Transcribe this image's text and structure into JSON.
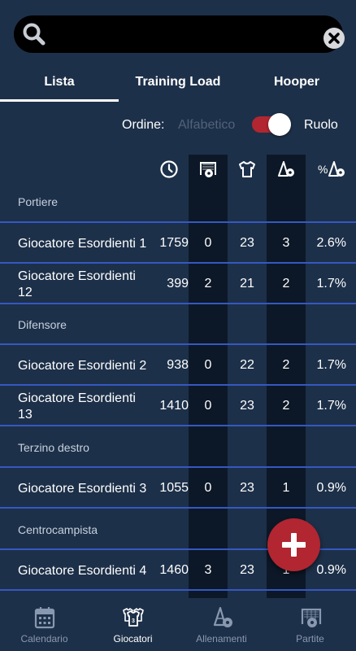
{
  "search": {
    "value": "",
    "placeholder": ""
  },
  "tabs": [
    {
      "label": "Lista",
      "active": true
    },
    {
      "label": "Training Load",
      "active": false
    },
    {
      "label": "Hooper",
      "active": false
    }
  ],
  "order": {
    "label": "Ordine:",
    "option_off": "Alfabetico",
    "option_on": "Ruolo",
    "toggle_on": true
  },
  "columns": {
    "icons": [
      "clock-icon",
      "goal-ball-icon",
      "shirt-icon",
      "cones-ball-icon",
      "percent-cones-ball-icon"
    ],
    "percent_symbol": "%"
  },
  "groups": [
    {
      "title": "Portiere",
      "players": [
        {
          "name": "Giocatore Esordienti 1",
          "time": "1759",
          "a": "0",
          "b": "23",
          "c": "3",
          "d": "2.6%"
        },
        {
          "name": "Giocatore Esordienti 12",
          "time": "399",
          "a": "2",
          "b": "21",
          "c": "2",
          "d": "1.7%"
        }
      ]
    },
    {
      "title": "Difensore",
      "players": [
        {
          "name": "Giocatore Esordienti 2",
          "time": "938",
          "a": "0",
          "b": "22",
          "c": "2",
          "d": "1.7%"
        },
        {
          "name": "Giocatore Esordienti 13",
          "time": "1410",
          "a": "0",
          "b": "23",
          "c": "2",
          "d": "1.7%"
        }
      ]
    },
    {
      "title": "Terzino destro",
      "players": [
        {
          "name": "Giocatore Esordienti 3",
          "time": "1055",
          "a": "0",
          "b": "23",
          "c": "1",
          "d": "0.9%"
        }
      ]
    },
    {
      "title": "Centrocampista",
      "players": [
        {
          "name": "Giocatore Esordienti 4",
          "time": "1460",
          "a": "3",
          "b": "23",
          "c": "1",
          "d": "0.9%"
        }
      ]
    }
  ],
  "fab": {
    "icon": "plus-icon"
  },
  "bottom_nav": [
    {
      "label": "Calendario",
      "icon": "calendar-icon",
      "active": false
    },
    {
      "label": "Giocatori",
      "icon": "players-shirt-icon",
      "active": true
    },
    {
      "label": "Allenamenti",
      "icon": "cones-ball-icon",
      "active": false
    },
    {
      "label": "Partite",
      "icon": "goal-ball-icon",
      "active": false
    }
  ],
  "colors": {
    "background": "#1d3049",
    "dark_column": "#0c1827",
    "separator": "#3558c2",
    "accent": "#b12631",
    "inactive": "#8898ae"
  }
}
